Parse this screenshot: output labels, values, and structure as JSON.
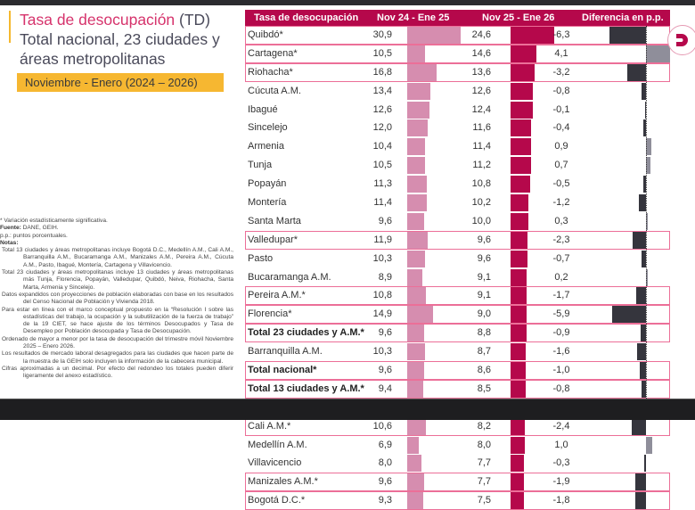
{
  "header": {
    "title_highlight": "Tasa de desocupación",
    "title_rest": " (TD)",
    "title_line2": "Total nacional, 23 ciudades y",
    "title_line3": "áreas metropolitanas",
    "period": "Noviembre - Enero (2024 – 2026)"
  },
  "notes": {
    "significance": "* Variación estadísticamente significativa.",
    "source_label": "Fuente:",
    "source": " DANE, GEIH.",
    "pp": "p.p.: puntos porcentuales.",
    "notes_label": "Notas:",
    "items": [
      "Total 13 ciudades y áreas metropolitanas incluye Bogotá D.C., Medellín A.M., Cali A.M., Barranquilla A.M., Bucaramanga A.M., Manizales A.M., Pereira A.M., Cúcuta A.M., Pasto, Ibagué, Montería, Cartagena y Villavicencio.",
      "Total 23 ciudades y áreas metropolitanas incluye 13 ciudades y áreas metropolitanas más Tunja, Florencia, Popayán, Valledupar, Quibdó, Neiva, Riohacha, Santa Marta, Armenia y Sincelejo.",
      "Datos expandidos con proyecciones de población elaboradas con base en los resultados del Censo Nacional de Población y Vivienda 2018.",
      "Para estar en línea con el marco conceptual propuesto en la “Resolución I sobre las estadísticas del trabajo, la ocupación y la subutilización de la fuerza de trabajo” de la 19 CIET, se hace ajuste de los términos Desocupados y Tasa de Desempleo por Población desocupada y Tasa de Desocupación.",
      "Ordenado de mayor a menor por la tasa de desocupación del trimestre móvil Noviembre 2025 – Enero 2026.",
      "Los resultados de mercado laboral desagregados para las ciudades que hacen parte de la muestra de la GEIH solo incluyen la información de la cabecera municipal.",
      "Cifras aproximadas a un decimal. Por efecto del redondeo los totales pueden diferir ligeramente del anexo estadístico."
    ]
  },
  "table": {
    "columns": [
      "Tasa de desocupación",
      "Nov 24 - Ene 25",
      "Nov 25 - Ene 26",
      "Diferencia en p.p."
    ],
    "colors": {
      "header": "#b5084b",
      "bar_prev": "#d68daf",
      "bar_curr": "#b5084b",
      "diff_neg": "#35353d",
      "diff_pos": "#8f8e9a",
      "highlight": "#ec6f98"
    }
  },
  "chart_data": {
    "type": "table",
    "title": "Tasa de desocupación (TD) Total nacional, 23 ciudades y áreas metropolitanas — Noviembre - Enero (2024 – 2026)",
    "columns": [
      "Tasa de desocupación",
      "Nov 24 - Ene 25",
      "Nov 25 - Ene 26",
      "Diferencia en p.p."
    ],
    "rows": [
      {
        "name": "Quibdó*",
        "prev": 30.9,
        "curr": 24.6,
        "diff": -6.3,
        "prev_s": "30,9",
        "curr_s": "24,6",
        "diff_s": "-6,3",
        "sig": true,
        "bold": false
      },
      {
        "name": "Cartagena*",
        "prev": 10.5,
        "curr": 14.6,
        "diff": 4.1,
        "prev_s": "10,5",
        "curr_s": "14,6",
        "diff_s": "4,1",
        "sig": true,
        "bold": false
      },
      {
        "name": "Riohacha*",
        "prev": 16.8,
        "curr": 13.6,
        "diff": -3.2,
        "prev_s": "16,8",
        "curr_s": "13,6",
        "diff_s": "-3,2",
        "sig": true,
        "bold": false
      },
      {
        "name": "Cúcuta A.M.",
        "prev": 13.4,
        "curr": 12.6,
        "diff": -0.8,
        "prev_s": "13,4",
        "curr_s": "12,6",
        "diff_s": "-0,8",
        "sig": false,
        "bold": false
      },
      {
        "name": "Ibagué",
        "prev": 12.6,
        "curr": 12.4,
        "diff": -0.1,
        "prev_s": "12,6",
        "curr_s": "12,4",
        "diff_s": "-0,1",
        "sig": false,
        "bold": false
      },
      {
        "name": "Sincelejo",
        "prev": 12.0,
        "curr": 11.6,
        "diff": -0.4,
        "prev_s": "12,0",
        "curr_s": "11,6",
        "diff_s": "-0,4",
        "sig": false,
        "bold": false
      },
      {
        "name": "Armenia",
        "prev": 10.4,
        "curr": 11.4,
        "diff": 0.9,
        "prev_s": "10,4",
        "curr_s": "11,4",
        "diff_s": "0,9",
        "sig": false,
        "bold": false
      },
      {
        "name": "Tunja",
        "prev": 10.5,
        "curr": 11.2,
        "diff": 0.7,
        "prev_s": "10,5",
        "curr_s": "11,2",
        "diff_s": "0,7",
        "sig": false,
        "bold": false
      },
      {
        "name": "Popayán",
        "prev": 11.3,
        "curr": 10.8,
        "diff": -0.5,
        "prev_s": "11,3",
        "curr_s": "10,8",
        "diff_s": "-0,5",
        "sig": false,
        "bold": false
      },
      {
        "name": "Montería",
        "prev": 11.4,
        "curr": 10.2,
        "diff": -1.2,
        "prev_s": "11,4",
        "curr_s": "10,2",
        "diff_s": "-1,2",
        "sig": false,
        "bold": false
      },
      {
        "name": "Santa Marta",
        "prev": 9.6,
        "curr": 10.0,
        "diff": 0.3,
        "prev_s": "9,6",
        "curr_s": "10,0",
        "diff_s": "0,3",
        "sig": false,
        "bold": false
      },
      {
        "name": "Valledupar*",
        "prev": 11.9,
        "curr": 9.6,
        "diff": -2.3,
        "prev_s": "11,9",
        "curr_s": "9,6",
        "diff_s": "-2,3",
        "sig": true,
        "bold": false
      },
      {
        "name": "Pasto",
        "prev": 10.3,
        "curr": 9.6,
        "diff": -0.7,
        "prev_s": "10,3",
        "curr_s": "9,6",
        "diff_s": "-0,7",
        "sig": false,
        "bold": false
      },
      {
        "name": "Bucaramanga A.M.",
        "prev": 8.9,
        "curr": 9.1,
        "diff": 0.2,
        "prev_s": "8,9",
        "curr_s": "9,1",
        "diff_s": "0,2",
        "sig": false,
        "bold": false
      },
      {
        "name": "Pereira A.M.*",
        "prev": 10.8,
        "curr": 9.1,
        "diff": -1.7,
        "prev_s": "10,8",
        "curr_s": "9,1",
        "diff_s": "-1,7",
        "sig": true,
        "bold": false
      },
      {
        "name": "Florencia*",
        "prev": 14.9,
        "curr": 9.0,
        "diff": -5.9,
        "prev_s": "14,9",
        "curr_s": "9,0",
        "diff_s": "-5,9",
        "sig": true,
        "bold": false
      },
      {
        "name": "Total 23 ciudades y A.M.*",
        "prev": 9.6,
        "curr": 8.8,
        "diff": -0.9,
        "prev_s": "9,6",
        "curr_s": "8,8",
        "diff_s": "-0,9",
        "sig": true,
        "bold": true
      },
      {
        "name": "Barranquilla A.M.",
        "prev": 10.3,
        "curr": 8.7,
        "diff": -1.6,
        "prev_s": "10,3",
        "curr_s": "8,7",
        "diff_s": "-1,6",
        "sig": false,
        "bold": false
      },
      {
        "name": "Total nacional*",
        "prev": 9.6,
        "curr": 8.6,
        "diff": -1.0,
        "prev_s": "9,6",
        "curr_s": "8,6",
        "diff_s": "-1,0",
        "sig": true,
        "bold": true
      },
      {
        "name": "Total 13 ciudades y A.M.*",
        "prev": 9.4,
        "curr": 8.5,
        "diff": -0.8,
        "prev_s": "9,4",
        "curr_s": "8,5",
        "diff_s": "-0,8",
        "sig": true,
        "bold": true
      },
      {
        "name": "Neiva",
        "prev": 8.6,
        "curr": 8.5,
        "diff": -0.2,
        "prev_s": "8,6",
        "curr_s": "8,5",
        "diff_s": "-0,2",
        "sig": false,
        "bold": false
      },
      {
        "name": "Cali A.M.*",
        "prev": 10.6,
        "curr": 8.2,
        "diff": -2.4,
        "prev_s": "10,6",
        "curr_s": "8,2",
        "diff_s": "-2,4",
        "sig": true,
        "bold": false
      },
      {
        "name": "Medellín A.M.",
        "prev": 6.9,
        "curr": 8.0,
        "diff": 1.0,
        "prev_s": "6,9",
        "curr_s": "8,0",
        "diff_s": "1,0",
        "sig": false,
        "bold": false
      },
      {
        "name": "Villavicencio",
        "prev": 8.0,
        "curr": 7.7,
        "diff": -0.3,
        "prev_s": "8,0",
        "curr_s": "7,7",
        "diff_s": "-0,3",
        "sig": false,
        "bold": false
      },
      {
        "name": "Manizales A.M.*",
        "prev": 9.6,
        "curr": 7.7,
        "diff": -1.9,
        "prev_s": "9,6",
        "curr_s": "7,7",
        "diff_s": "-1,9",
        "sig": true,
        "bold": false
      },
      {
        "name": "Bogotá D.C.*",
        "prev": 9.3,
        "curr": 7.5,
        "diff": -1.8,
        "prev_s": "9,3",
        "curr_s": "7,5",
        "diff_s": "-1,8",
        "sig": true,
        "bold": false
      }
    ]
  },
  "logo": {
    "name": "dane-logo",
    "letter": "D"
  }
}
